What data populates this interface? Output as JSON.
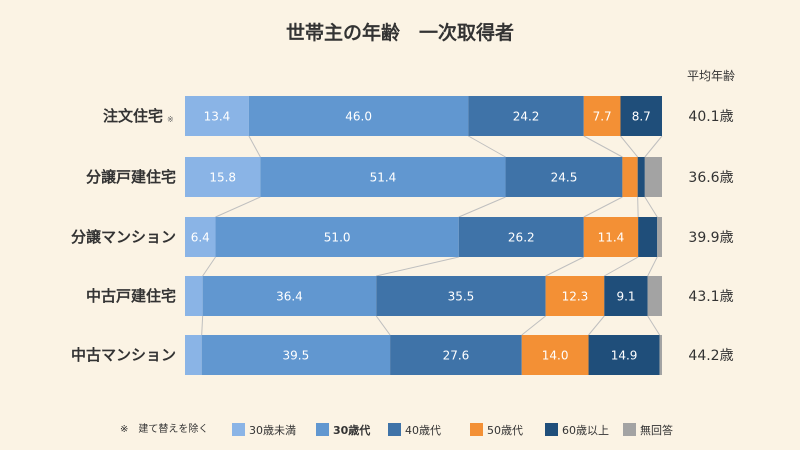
{
  "chart_data": {
    "type": "bar",
    "orientation": "horizontal",
    "stacked": true,
    "normalized": true,
    "title": "世帯主の年齢　一次取得者",
    "avg_header": "平均年齢",
    "categories": [
      "注文住宅",
      "分譲戸建住宅",
      "分譲マンション",
      "中古戸建住宅",
      "中古マンション"
    ],
    "category_notes": [
      "※",
      "",
      "",
      "",
      ""
    ],
    "averages": [
      "40.1歳",
      "36.6歳",
      "39.9歳",
      "43.1歳",
      "44.2歳"
    ],
    "series": [
      {
        "name": "30歳未満",
        "color": "#8ab4e6",
        "values": [
          13.4,
          15.8,
          6.4,
          3.7,
          3.5
        ],
        "labels": [
          "13.4",
          "15.8",
          "6.4",
          "",
          ""
        ]
      },
      {
        "name": "30歳代",
        "color": "#6197d0",
        "values": [
          46.0,
          51.4,
          51.0,
          36.4,
          39.5
        ],
        "labels": [
          "46.0",
          "51.4",
          "51.0",
          "36.4",
          "39.5"
        ],
        "bold": true
      },
      {
        "name": "40歳代",
        "color": "#3f73a8",
        "values": [
          24.2,
          24.5,
          26.2,
          35.5,
          27.6
        ],
        "labels": [
          "24.2",
          "24.5",
          "26.2",
          "35.5",
          "27.6"
        ]
      },
      {
        "name": "50歳代",
        "color": "#f39035",
        "values": [
          7.7,
          3.2,
          11.4,
          12.3,
          14.0
        ],
        "labels": [
          "7.7",
          "",
          "11.4",
          "12.3",
          "14.0"
        ]
      },
      {
        "name": "60歳以上",
        "color": "#1f4e7a",
        "values": [
          8.7,
          1.5,
          4.0,
          9.1,
          14.9
        ],
        "labels": [
          "8.7",
          "",
          "",
          "9.1",
          "14.9"
        ]
      },
      {
        "name": "無回答",
        "color": "#a3a3a3",
        "values": [
          0.0,
          3.6,
          1.0,
          3.0,
          0.5
        ],
        "labels": [
          "",
          "",
          "",
          "",
          ""
        ]
      }
    ],
    "xlim": [
      0,
      100
    ],
    "grid": false,
    "legend": "bottom"
  },
  "legend": {
    "note": "※　建て替えを除く"
  }
}
